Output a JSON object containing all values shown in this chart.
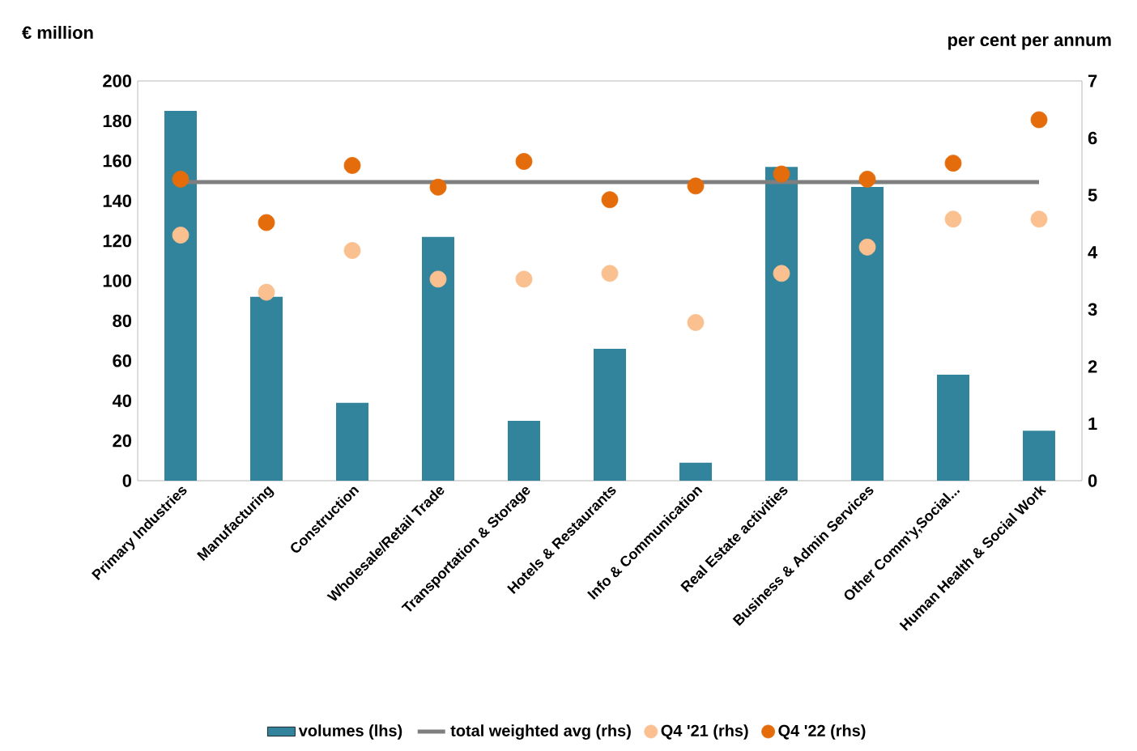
{
  "chart_data": {
    "type": "bar",
    "ylabel": "€ million",
    "y2label": "per cent per annum",
    "categories": [
      "Primary Industries",
      "Manufacturing",
      "Construction",
      "Wholesale/Retail Trade",
      "Transportation & Storage",
      "Hotels & Restaurants",
      "Info & Communication",
      "Real Estate activities",
      "Business & Admin Services",
      "Other Comm'y,Social...",
      "Human Health & Social Work"
    ],
    "series": [
      {
        "name": "volumes (lhs)",
        "color": "#31849b",
        "values": [
          185,
          92,
          39,
          122,
          30,
          66,
          9,
          157,
          147,
          53,
          25
        ]
      },
      {
        "name": "total weighted avg (rhs)",
        "type": "line",
        "axis": "y2",
        "color": "#7f7f7f",
        "marker": "none",
        "values": [
          5.23,
          5.23,
          5.23,
          5.23,
          5.23,
          5.23,
          5.23,
          5.23,
          5.23,
          5.23,
          5.23
        ]
      },
      {
        "name": "Q4 '21 (rhs)",
        "type": "scatter",
        "axis": "y2",
        "color": "#fac090",
        "marker": "circle",
        "values": [
          4.3,
          3.3,
          4.03,
          3.53,
          3.53,
          3.63,
          2.77,
          3.63,
          4.09,
          4.58,
          4.58
        ]
      },
      {
        "name": "Q4 '22 (rhs)",
        "type": "scatter",
        "axis": "y2",
        "color": "#e46c0a",
        "marker": "circle",
        "values": [
          5.28,
          4.52,
          5.52,
          5.14,
          5.59,
          4.92,
          5.16,
          5.37,
          5.28,
          5.56,
          6.32
        ]
      }
    ],
    "ylim": [
      0,
      200
    ],
    "yticks": [
      0,
      20,
      40,
      60,
      80,
      100,
      120,
      140,
      160,
      180,
      200
    ],
    "y2lim": [
      0,
      7
    ],
    "y2ticks": [
      0,
      1,
      2,
      3,
      4,
      5,
      6,
      7
    ],
    "legend": "bottom"
  }
}
